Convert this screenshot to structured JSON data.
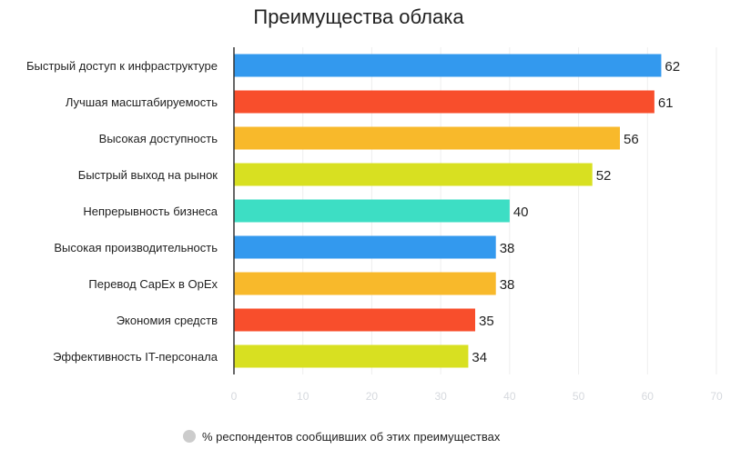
{
  "chart_data": {
    "type": "bar",
    "orientation": "horizontal",
    "title": "Преимущества облака",
    "categories": [
      "Быстрый доступ к инфраструктуре",
      "Лучшая масштабируемость",
      "Высокая доступность",
      "Быстрый выход на рынок",
      "Непрерывность бизнеса",
      "Высокая производительность",
      "Перевод CapEx в OpEx",
      "Экономия средств",
      "Эффективность IT-персонала"
    ],
    "values": [
      62,
      61,
      56,
      52,
      40,
      38,
      38,
      35,
      34
    ],
    "colors": [
      "#3399ee",
      "#f84e2c",
      "#f8b92b",
      "#d8e021",
      "#3ddec4",
      "#3399ee",
      "#f8b92b",
      "#f84e2c",
      "#d8e021"
    ],
    "xlim": [
      0,
      70
    ],
    "xticks": [
      0,
      10,
      20,
      30,
      40,
      50,
      60,
      70
    ],
    "grid": true,
    "legend": {
      "position": "bottom",
      "label": "% респондентов сообщивших об этих преимуществах",
      "marker_color": "#cccccc"
    }
  }
}
